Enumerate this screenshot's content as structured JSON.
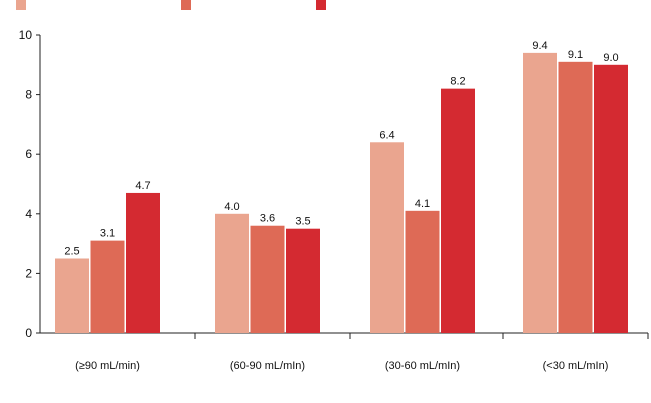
{
  "chart_data": {
    "type": "bar",
    "categories": [
      "(≥90 mL/min)",
      "(60-90 mL/mIn)",
      "(30-60 mL/mIn)",
      "(<30 mL/mIn)"
    ],
    "series": [
      {
        "values": [
          2.5,
          4.0,
          6.4,
          9.4
        ],
        "color": "#eaa58f"
      },
      {
        "values": [
          3.1,
          3.6,
          4.1,
          9.1
        ],
        "color": "#de6a56"
      },
      {
        "values": [
          4.7,
          3.5,
          8.2,
          9.0
        ],
        "color": "#d42a31"
      }
    ],
    "data_labels": [
      [
        "2.5",
        "4.0",
        "6.4",
        "9.4"
      ],
      [
        "3.1",
        "3.6",
        "4.1",
        "9.1"
      ],
      [
        "4.7",
        "3.5",
        "8.2",
        "9.0"
      ]
    ],
    "y_ticks": [
      "0",
      "2",
      "4",
      "6",
      "8",
      "10"
    ],
    "ylim": [
      0,
      10
    ],
    "title": "",
    "xlabel": "",
    "ylabel": "",
    "grid": false,
    "legend_position": "top-left"
  }
}
